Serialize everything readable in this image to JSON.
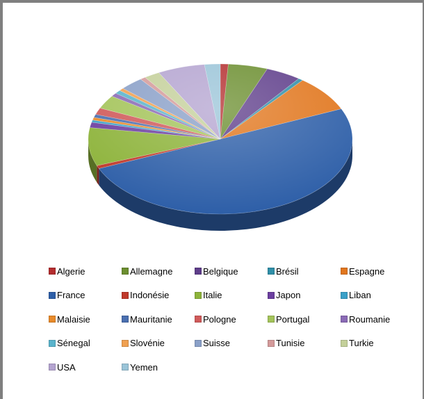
{
  "chart_data": {
    "type": "pie",
    "categories": [
      "Algerie",
      "Allemagne",
      "Belgique",
      "Brésil",
      "Espagne",
      "France",
      "Indonésie",
      "Italie",
      "Japon",
      "Liban",
      "Malaisie",
      "Mauritanie",
      "Pologne",
      "Portugal",
      "Roumanie",
      "Sénegal",
      "Slovénie",
      "Suisse",
      "Tunisie",
      "Turkie",
      "USA",
      "Yemen"
    ],
    "values": [
      1.0,
      5.0,
      4.5,
      0.6,
      8.0,
      52.0,
      0.7,
      8.5,
      1.2,
      0.5,
      0.6,
      0.7,
      1.5,
      3.0,
      0.8,
      0.8,
      0.6,
      3.0,
      0.7,
      2.0,
      6.0,
      2.0
    ],
    "colors": [
      "#b32d2e",
      "#6b8e2f",
      "#5e3d8a",
      "#2f8fa8",
      "#e1761d",
      "#2e5fa8",
      "#c0392b",
      "#8db33a",
      "#6c3fa0",
      "#3aa0c8",
      "#e88a2a",
      "#4a6fb0",
      "#d05a5a",
      "#a4c45a",
      "#8a6ab5",
      "#5ab4cc",
      "#f0a050",
      "#8aa0c8",
      "#d49a9a",
      "#c4d09a",
      "#b4a4d0",
      "#9ac4d8"
    ],
    "legend_position": "bottom"
  }
}
